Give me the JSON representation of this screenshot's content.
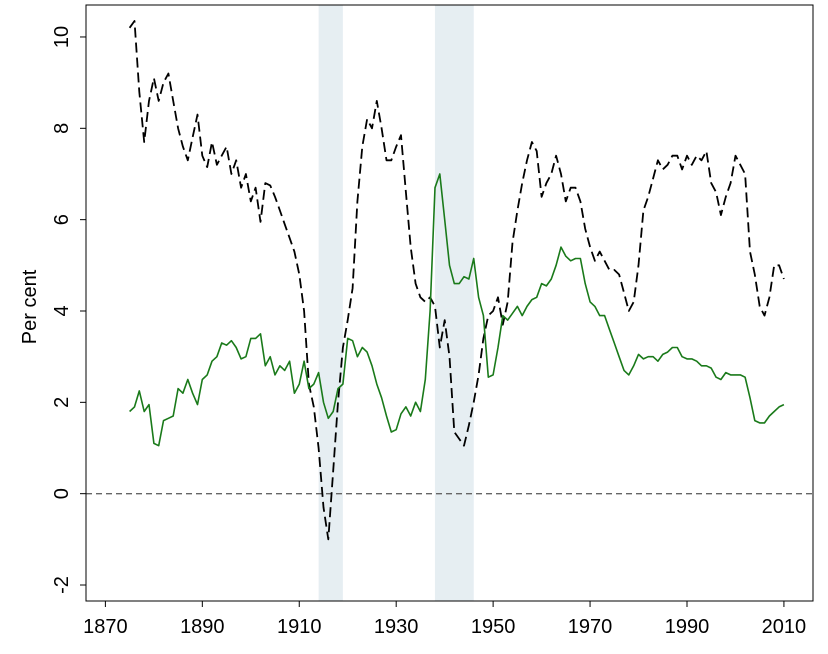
{
  "chart_data": {
    "type": "line",
    "ylabel": "Per cent",
    "xlim": [
      1866,
      2016
    ],
    "ylim": [
      -2.35,
      10.7
    ],
    "x_ticks": [
      1870,
      1890,
      1910,
      1930,
      1950,
      1970,
      1990,
      2010
    ],
    "y_ticks": [
      -2,
      0,
      2,
      4,
      6,
      8,
      10
    ],
    "grid": false,
    "legend": "none",
    "reference_line": {
      "y": 0,
      "color": "#666666",
      "style": "dashed"
    },
    "shaded_periods": [
      {
        "start": 1914,
        "end": 1919,
        "color": "#e6eef2"
      },
      {
        "start": 1938,
        "end": 1946,
        "color": "#e6eef2"
      }
    ],
    "series": [
      {
        "style": "dashed",
        "color": "#000000",
        "points": [
          [
            1875,
            10.2
          ],
          [
            1876,
            10.35
          ],
          [
            1877,
            8.8
          ],
          [
            1878,
            7.7
          ],
          [
            1879,
            8.6
          ],
          [
            1880,
            9.1
          ],
          [
            1881,
            8.6
          ],
          [
            1882,
            9.0
          ],
          [
            1883,
            9.2
          ],
          [
            1884,
            8.6
          ],
          [
            1885,
            8.0
          ],
          [
            1886,
            7.6
          ],
          [
            1887,
            7.3
          ],
          [
            1888,
            7.8
          ],
          [
            1889,
            8.3
          ],
          [
            1890,
            7.4
          ],
          [
            1891,
            7.15
          ],
          [
            1892,
            7.7
          ],
          [
            1893,
            7.2
          ],
          [
            1894,
            7.4
          ],
          [
            1895,
            7.6
          ],
          [
            1896,
            7.0
          ],
          [
            1897,
            7.3
          ],
          [
            1898,
            6.7
          ],
          [
            1899,
            7.0
          ],
          [
            1900,
            6.4
          ],
          [
            1901,
            6.7
          ],
          [
            1902,
            5.95
          ],
          [
            1903,
            6.8
          ],
          [
            1904,
            6.75
          ],
          [
            1905,
            6.5
          ],
          [
            1906,
            6.2
          ],
          [
            1907,
            5.9
          ],
          [
            1908,
            5.6
          ],
          [
            1909,
            5.3
          ],
          [
            1910,
            4.8
          ],
          [
            1911,
            4.0
          ],
          [
            1912,
            2.4
          ],
          [
            1913,
            1.9
          ],
          [
            1914,
            1.0
          ],
          [
            1915,
            -0.3
          ],
          [
            1916,
            -1.0
          ],
          [
            1917,
            0.5
          ],
          [
            1918,
            2.0
          ],
          [
            1919,
            3.2
          ],
          [
            1920,
            3.8
          ],
          [
            1921,
            4.5
          ],
          [
            1922,
            6.4
          ],
          [
            1923,
            7.6
          ],
          [
            1924,
            8.2
          ],
          [
            1925,
            8.0
          ],
          [
            1926,
            8.6
          ],
          [
            1927,
            8.0
          ],
          [
            1928,
            7.3
          ],
          [
            1929,
            7.3
          ],
          [
            1930,
            7.6
          ],
          [
            1931,
            7.85
          ],
          [
            1932,
            6.6
          ],
          [
            1933,
            5.4
          ],
          [
            1934,
            4.6
          ],
          [
            1935,
            4.3
          ],
          [
            1936,
            4.2
          ],
          [
            1937,
            4.3
          ],
          [
            1938,
            4.1
          ],
          [
            1939,
            3.2
          ],
          [
            1940,
            3.8
          ],
          [
            1941,
            3.0
          ],
          [
            1942,
            1.35
          ],
          [
            1943,
            1.2
          ],
          [
            1944,
            1.05
          ],
          [
            1945,
            1.5
          ],
          [
            1946,
            2.0
          ],
          [
            1947,
            2.6
          ],
          [
            1948,
            3.4
          ],
          [
            1949,
            3.9
          ],
          [
            1950,
            4.0
          ],
          [
            1951,
            4.3
          ],
          [
            1952,
            3.7
          ],
          [
            1953,
            4.2
          ],
          [
            1954,
            5.5
          ],
          [
            1955,
            6.2
          ],
          [
            1956,
            6.8
          ],
          [
            1957,
            7.3
          ],
          [
            1958,
            7.7
          ],
          [
            1959,
            7.5
          ],
          [
            1960,
            6.5
          ],
          [
            1961,
            6.8
          ],
          [
            1962,
            7.0
          ],
          [
            1963,
            7.4
          ],
          [
            1964,
            7.0
          ],
          [
            1965,
            6.4
          ],
          [
            1966,
            6.7
          ],
          [
            1967,
            6.7
          ],
          [
            1968,
            6.4
          ],
          [
            1969,
            5.8
          ],
          [
            1970,
            5.4
          ],
          [
            1971,
            5.1
          ],
          [
            1972,
            5.3
          ],
          [
            1973,
            5.1
          ],
          [
            1974,
            4.9
          ],
          [
            1975,
            4.9
          ],
          [
            1976,
            4.8
          ],
          [
            1977,
            4.4
          ],
          [
            1978,
            4.0
          ],
          [
            1979,
            4.2
          ],
          [
            1980,
            5.0
          ],
          [
            1981,
            6.2
          ],
          [
            1982,
            6.5
          ],
          [
            1983,
            6.9
          ],
          [
            1984,
            7.3
          ],
          [
            1985,
            7.1
          ],
          [
            1986,
            7.2
          ],
          [
            1987,
            7.4
          ],
          [
            1988,
            7.4
          ],
          [
            1989,
            7.1
          ],
          [
            1990,
            7.4
          ],
          [
            1991,
            7.2
          ],
          [
            1992,
            7.4
          ],
          [
            1993,
            7.3
          ],
          [
            1994,
            7.5
          ],
          [
            1995,
            6.8
          ],
          [
            1996,
            6.6
          ],
          [
            1997,
            6.1
          ],
          [
            1998,
            6.5
          ],
          [
            1999,
            6.8
          ],
          [
            2000,
            7.4
          ],
          [
            2001,
            7.2
          ],
          [
            2002,
            7.0
          ],
          [
            2003,
            5.3
          ],
          [
            2004,
            4.8
          ],
          [
            2005,
            4.1
          ],
          [
            2006,
            3.9
          ],
          [
            2007,
            4.3
          ],
          [
            2008,
            5.0
          ],
          [
            2009,
            5.0
          ],
          [
            2010,
            4.7
          ]
        ]
      },
      {
        "style": "solid",
        "color": "#1a7a1a",
        "points": [
          [
            1875,
            1.8
          ],
          [
            1876,
            1.9
          ],
          [
            1877,
            2.25
          ],
          [
            1878,
            1.8
          ],
          [
            1879,
            1.95
          ],
          [
            1880,
            1.1
          ],
          [
            1881,
            1.05
          ],
          [
            1882,
            1.6
          ],
          [
            1883,
            1.65
          ],
          [
            1884,
            1.7
          ],
          [
            1885,
            2.3
          ],
          [
            1886,
            2.2
          ],
          [
            1887,
            2.5
          ],
          [
            1888,
            2.2
          ],
          [
            1889,
            1.95
          ],
          [
            1890,
            2.5
          ],
          [
            1891,
            2.6
          ],
          [
            1892,
            2.9
          ],
          [
            1893,
            3.0
          ],
          [
            1894,
            3.3
          ],
          [
            1895,
            3.25
          ],
          [
            1896,
            3.35
          ],
          [
            1897,
            3.2
          ],
          [
            1898,
            2.95
          ],
          [
            1899,
            3.0
          ],
          [
            1900,
            3.4
          ],
          [
            1901,
            3.4
          ],
          [
            1902,
            3.5
          ],
          [
            1903,
            2.8
          ],
          [
            1904,
            3.0
          ],
          [
            1905,
            2.6
          ],
          [
            1906,
            2.8
          ],
          [
            1907,
            2.7
          ],
          [
            1908,
            2.9
          ],
          [
            1909,
            2.2
          ],
          [
            1910,
            2.4
          ],
          [
            1911,
            2.9
          ],
          [
            1912,
            2.3
          ],
          [
            1913,
            2.4
          ],
          [
            1914,
            2.65
          ],
          [
            1915,
            2.0
          ],
          [
            1916,
            1.65
          ],
          [
            1917,
            1.8
          ],
          [
            1918,
            2.3
          ],
          [
            1919,
            2.4
          ],
          [
            1920,
            3.4
          ],
          [
            1921,
            3.35
          ],
          [
            1922,
            3.0
          ],
          [
            1923,
            3.2
          ],
          [
            1924,
            3.1
          ],
          [
            1925,
            2.8
          ],
          [
            1926,
            2.4
          ],
          [
            1927,
            2.1
          ],
          [
            1928,
            1.7
          ],
          [
            1929,
            1.35
          ],
          [
            1930,
            1.4
          ],
          [
            1931,
            1.75
          ],
          [
            1932,
            1.9
          ],
          [
            1933,
            1.7
          ],
          [
            1934,
            2.0
          ],
          [
            1935,
            1.8
          ],
          [
            1936,
            2.5
          ],
          [
            1937,
            4.0
          ],
          [
            1938,
            6.7
          ],
          [
            1939,
            7.0
          ],
          [
            1940,
            6.0
          ],
          [
            1941,
            5.0
          ],
          [
            1942,
            4.6
          ],
          [
            1943,
            4.6
          ],
          [
            1944,
            4.75
          ],
          [
            1945,
            4.7
          ],
          [
            1946,
            5.15
          ],
          [
            1947,
            4.3
          ],
          [
            1948,
            3.9
          ],
          [
            1949,
            2.55
          ],
          [
            1950,
            2.6
          ],
          [
            1951,
            3.2
          ],
          [
            1952,
            3.9
          ],
          [
            1953,
            3.8
          ],
          [
            1954,
            3.95
          ],
          [
            1955,
            4.1
          ],
          [
            1956,
            3.9
          ],
          [
            1957,
            4.1
          ],
          [
            1958,
            4.25
          ],
          [
            1959,
            4.3
          ],
          [
            1960,
            4.6
          ],
          [
            1961,
            4.55
          ],
          [
            1962,
            4.7
          ],
          [
            1963,
            5.0
          ],
          [
            1964,
            5.4
          ],
          [
            1965,
            5.2
          ],
          [
            1966,
            5.1
          ],
          [
            1967,
            5.15
          ],
          [
            1968,
            5.15
          ],
          [
            1969,
            4.6
          ],
          [
            1970,
            4.2
          ],
          [
            1971,
            4.1
          ],
          [
            1972,
            3.9
          ],
          [
            1973,
            3.9
          ],
          [
            1974,
            3.6
          ],
          [
            1975,
            3.3
          ],
          [
            1976,
            3.0
          ],
          [
            1977,
            2.7
          ],
          [
            1978,
            2.6
          ],
          [
            1979,
            2.8
          ],
          [
            1980,
            3.05
          ],
          [
            1981,
            2.95
          ],
          [
            1982,
            3.0
          ],
          [
            1983,
            3.0
          ],
          [
            1984,
            2.9
          ],
          [
            1985,
            3.05
          ],
          [
            1986,
            3.1
          ],
          [
            1987,
            3.2
          ],
          [
            1988,
            3.2
          ],
          [
            1989,
            3.0
          ],
          [
            1990,
            2.95
          ],
          [
            1991,
            2.95
          ],
          [
            1992,
            2.9
          ],
          [
            1993,
            2.8
          ],
          [
            1994,
            2.8
          ],
          [
            1995,
            2.75
          ],
          [
            1996,
            2.55
          ],
          [
            1997,
            2.5
          ],
          [
            1998,
            2.65
          ],
          [
            1999,
            2.6
          ],
          [
            2000,
            2.6
          ],
          [
            2001,
            2.6
          ],
          [
            2002,
            2.55
          ],
          [
            2003,
            2.1
          ],
          [
            2004,
            1.6
          ],
          [
            2005,
            1.55
          ],
          [
            2006,
            1.55
          ],
          [
            2007,
            1.7
          ],
          [
            2008,
            1.8
          ],
          [
            2009,
            1.9
          ],
          [
            2010,
            1.95
          ]
        ]
      }
    ]
  }
}
